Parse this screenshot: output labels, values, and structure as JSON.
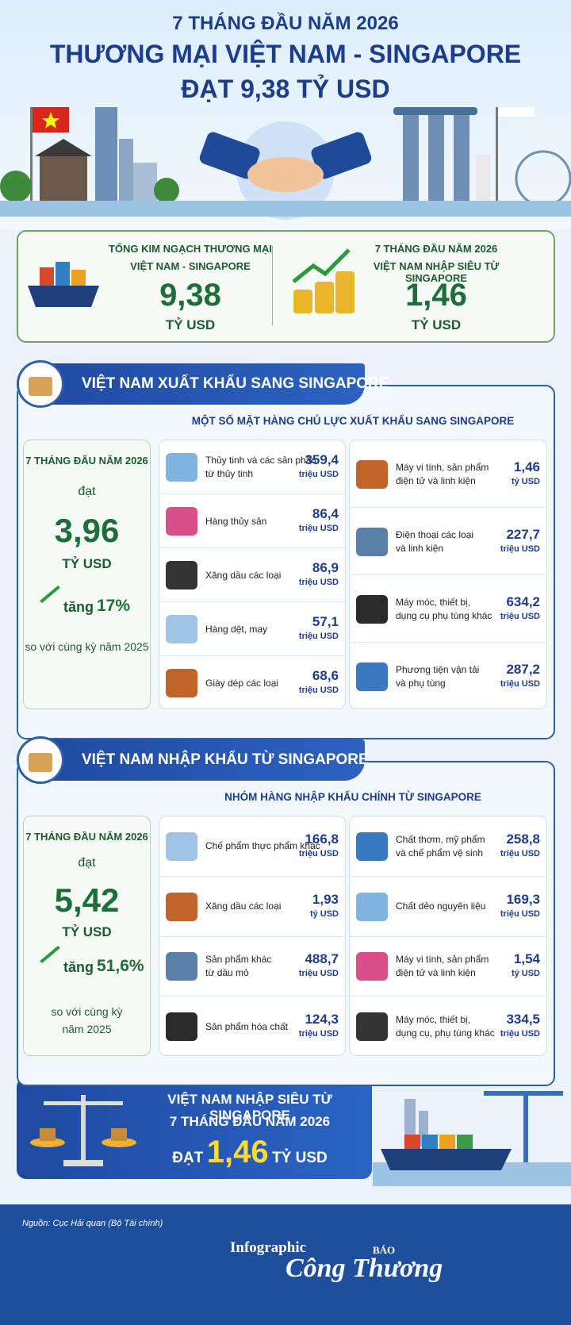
{
  "header": {
    "subtitle": "7 THÁNG ĐẦU NĂM 2026",
    "title": "THƯƠNG MẠI VIỆT NAM - SINGAPORE",
    "headline": "ĐẠT 9,38 TỶ USD"
  },
  "summary": [
    {
      "lines": [
        "TỔNG KIM NGẠCH THƯƠNG MẠI",
        "VIỆT NAM - SINGAPORE"
      ],
      "value": "9,38",
      "unit": "TỶ USD"
    },
    {
      "lines": [
        "7 THÁNG ĐẦU NĂM 2026",
        "VIỆT NAM NHẬP SIÊU TỪ SINGAPORE"
      ],
      "value": "1,46",
      "unit": "TỶ USD"
    }
  ],
  "sections": [
    {
      "heading": "VIỆT NAM XUẤT KHẨU SANG SINGAPORE",
      "subheading": "MỘT SỐ MẶT HÀNG CHỦ LỰC XUẤT KHẨU SANG SINGAPORE",
      "period": "7 THÁNG ĐẦU NĂM 2026",
      "verb": "đạt",
      "value": "3,96",
      "unit": "TỶ USD",
      "growth_prefix": "tăng",
      "growth": "17%",
      "comparison": [
        "so với cùng kỳ năm 2025"
      ],
      "left": [
        {
          "name": [
            "Thủy tinh và các sản phẩm",
            "từ thủy tinh"
          ],
          "value": "359,4",
          "unit": "triệu USD"
        },
        {
          "name": [
            "Hàng thủy sản"
          ],
          "value": "86,4",
          "unit": "triệu USD"
        },
        {
          "name": [
            "Xăng dầu các loại"
          ],
          "value": "86,9",
          "unit": "triệu USD"
        },
        {
          "name": [
            "Hàng dệt, may"
          ],
          "value": "57,1",
          "unit": "triệu USD"
        },
        {
          "name": [
            "Giày dép các loại"
          ],
          "value": "68,6",
          "unit": "triệu USD"
        }
      ],
      "right": [
        {
          "name": [
            "Máy vi tính, sản phẩm",
            "điện tử và linh kiện"
          ],
          "value": "1,46",
          "unit": "tỷ USD"
        },
        {
          "name": [
            "Điện thoại các loại",
            "và linh kiện"
          ],
          "value": "227,7",
          "unit": "triệu USD"
        },
        {
          "name": [
            "Máy móc, thiết bị,",
            "dụng cụ phụ tùng khác"
          ],
          "value": "634,2",
          "unit": "triệu USD"
        },
        {
          "name": [
            "Phương tiện vận tải",
            "và phụ tùng"
          ],
          "value": "287,2",
          "unit": "triệu USD"
        }
      ]
    },
    {
      "heading": "VIỆT NAM NHẬP KHẨU TỪ SINGAPORE",
      "subheading": "NHÓM HÀNG NHẬP KHẨU CHÍNH TỪ SINGAPORE",
      "period": "7 THÁNG ĐẦU NĂM 2026",
      "verb": "đạt",
      "value": "5,42",
      "unit": "TỶ USD",
      "growth_prefix": "tăng",
      "growth": "51,6%",
      "comparison": [
        "so với cùng kỳ",
        "năm 2025"
      ],
      "left": [
        {
          "name": [
            "Chế phẩm thực phẩm khác"
          ],
          "value": "166,8",
          "unit": "triệu USD"
        },
        {
          "name": [
            "Xăng dầu các loại"
          ],
          "value": "1,93",
          "unit": "tỷ USD"
        },
        {
          "name": [
            "Sản phẩm khác",
            "từ dầu mỏ"
          ],
          "value": "488,7",
          "unit": "triệu USD"
        },
        {
          "name": [
            "Sản phẩm hóa chất"
          ],
          "value": "124,3",
          "unit": "triệu USD"
        }
      ],
      "right": [
        {
          "name": [
            "Chất thơm, mỹ phẩm",
            "và chế phẩm vệ sinh"
          ],
          "value": "258,8",
          "unit": "triệu USD"
        },
        {
          "name": [
            "Chất dẻo nguyên liệu"
          ],
          "value": "169,3",
          "unit": "triệu USD"
        },
        {
          "name": [
            "Máy vi tính, sản phẩm",
            "điện tử và linh kiện"
          ],
          "value": "1,54",
          "unit": "tỷ USD"
        },
        {
          "name": [
            "Máy móc, thiết bị,",
            "dụng cụ, phụ tùng khác"
          ],
          "value": "334,5",
          "unit": "triệu USD"
        }
      ]
    }
  ],
  "banner": {
    "line1": "VIỆT NAM NHẬP SIÊU TỪ SINGAPORE",
    "line2": "7 THÁNG ĐẦU NĂM 2026",
    "prefix": "ĐẠT",
    "value": "1,46",
    "unit": "TỶ USD"
  },
  "footer": {
    "source": "Nguồn: Cục Hải quan (Bộ Tài chính)",
    "label": "Infographic",
    "brand_small": "BÁO",
    "brand": "Công Thương"
  }
}
